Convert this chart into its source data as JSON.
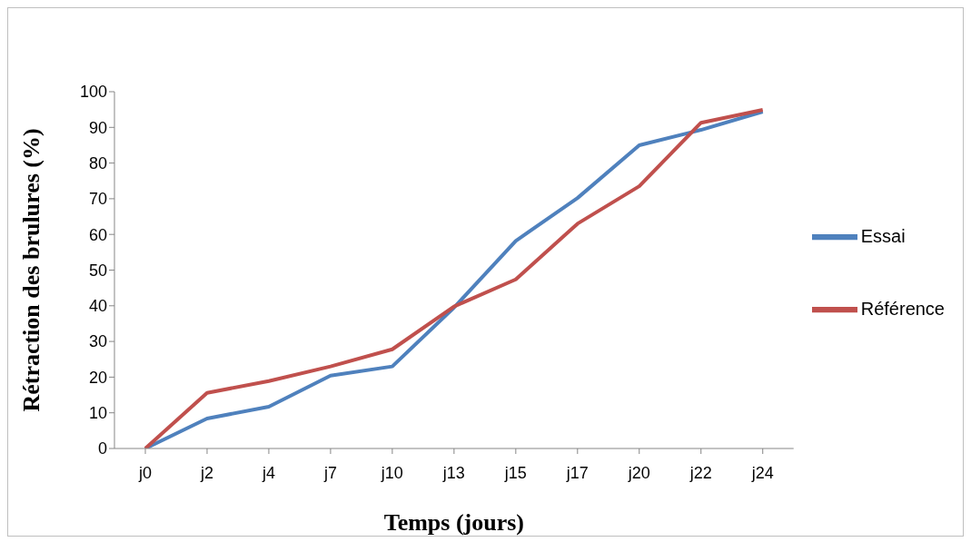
{
  "chart_data": {
    "type": "line",
    "xlabel": "Temps (jours)",
    "ylabel": "Rétraction des brulures (%)",
    "categories": [
      "j0",
      "j2",
      "j4",
      "j7",
      "j10",
      "j13",
      "j15",
      "j17",
      "j20",
      "j22",
      "j24"
    ],
    "series": [
      {
        "name": "Essai",
        "color": "#4f81bd",
        "values": [
          0,
          8.4,
          11.7,
          20.4,
          23,
          39.5,
          58.2,
          70.2,
          85,
          89.3,
          94.4
        ]
      },
      {
        "name": "Référence",
        "color": "#c0504d",
        "values": [
          0,
          15.6,
          18.9,
          23,
          27.8,
          39.8,
          47.4,
          63,
          73.5,
          91.3,
          94.9
        ]
      }
    ],
    "ylim": [
      0,
      100
    ],
    "yticks": [
      0,
      10,
      20,
      30,
      40,
      50,
      60,
      70,
      80,
      90,
      100
    ],
    "legend": "right",
    "marker": "none",
    "line_style": "solid"
  }
}
